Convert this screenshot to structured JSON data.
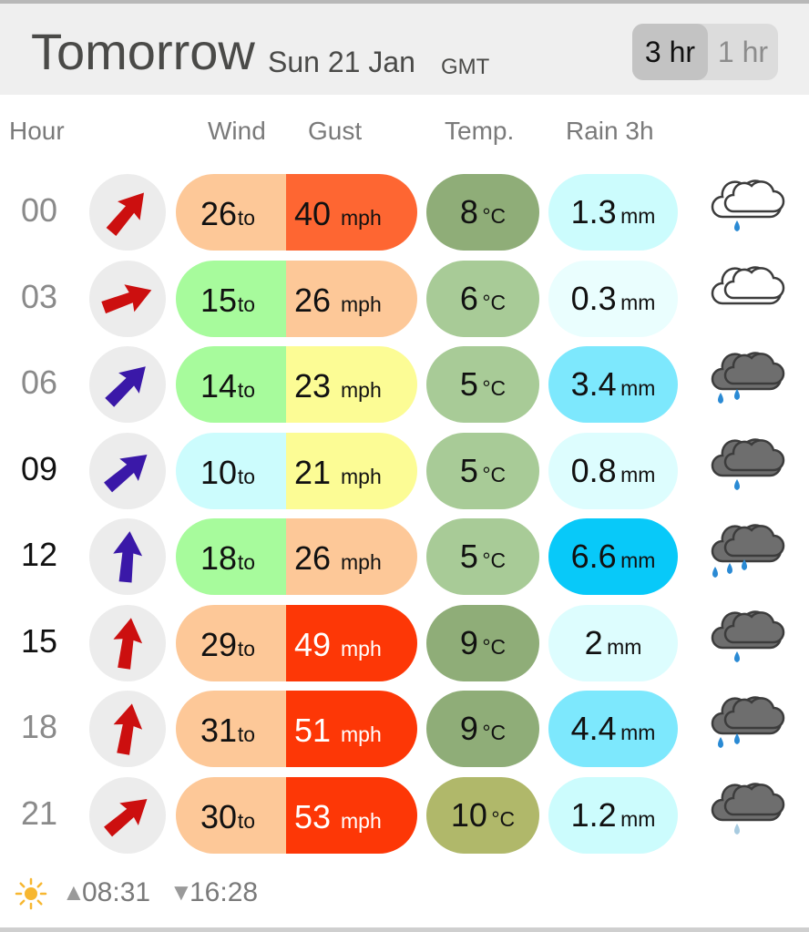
{
  "header": {
    "title": "Tomorrow",
    "date": "Sun 21 Jan",
    "timezone": "GMT",
    "toggle": [
      {
        "label": "3 hr",
        "active": true
      },
      {
        "label": "1 hr",
        "active": false
      }
    ]
  },
  "columns": {
    "hour": "Hour",
    "wind": "Wind",
    "gust": "Gust",
    "temp": "Temp.",
    "rain": "Rain 3h"
  },
  "units": {
    "wind_to": "to",
    "speed": "mph",
    "temp": "°C",
    "rain": "mm"
  },
  "rows": [
    {
      "hour": "00",
      "current": false,
      "dir_deg": 40,
      "dir_color": "#cc0f0f",
      "wind": "26",
      "gust": "40",
      "wind_bg": "#fdc898",
      "gust_bg": "#fe6632",
      "gust_text": "#111111",
      "temp": "8",
      "temp_bg": "#8fad78",
      "rain": "1.3",
      "rain_bg": "#ccfcfd",
      "icon": "cloud-light-rain-icon",
      "drops": 1,
      "dark_cloud": false
    },
    {
      "hour": "03",
      "current": false,
      "dir_deg": 70,
      "dir_color": "#cc0f0f",
      "wind": "15",
      "gust": "26",
      "wind_bg": "#a7fb9c",
      "gust_bg": "#fdc898",
      "gust_text": "#111111",
      "temp": "6",
      "temp_bg": "#a8cb97",
      "rain": "0.3",
      "rain_bg": "#eafefe",
      "icon": "partly-cloudy-night-icon",
      "drops": 0,
      "dark_cloud": false
    },
    {
      "hour": "06",
      "current": false,
      "dir_deg": 45,
      "dir_color": "#3a18a8",
      "wind": "14",
      "gust": "23",
      "wind_bg": "#a7fb9c",
      "gust_bg": "#fcfc95",
      "gust_text": "#111111",
      "temp": "5",
      "temp_bg": "#a8cb97",
      "rain": "3.4",
      "rain_bg": "#7de8fd",
      "icon": "cloud-rain-icon",
      "drops": 2,
      "dark_cloud": true
    },
    {
      "hour": "09",
      "current": true,
      "dir_deg": 50,
      "dir_color": "#3a18a8",
      "wind": "10",
      "gust": "21",
      "wind_bg": "#ccfcfd",
      "gust_bg": "#fcfc95",
      "gust_text": "#111111",
      "temp": "5",
      "temp_bg": "#a8cb97",
      "rain": "0.8",
      "rain_bg": "#ddfdfe",
      "icon": "cloud-light-rain-icon",
      "drops": 1,
      "dark_cloud": true
    },
    {
      "hour": "12",
      "current": true,
      "dir_deg": 5,
      "dir_color": "#3a18a8",
      "wind": "18",
      "gust": "26",
      "wind_bg": "#a7fb9c",
      "gust_bg": "#fdc898",
      "gust_text": "#111111",
      "temp": "5",
      "temp_bg": "#a8cb97",
      "rain": "6.6",
      "rain_bg": "#08c9f9",
      "icon": "cloud-heavy-rain-icon",
      "drops": 3,
      "dark_cloud": true
    },
    {
      "hour": "15",
      "current": true,
      "dir_deg": 8,
      "dir_color": "#cc0f0f",
      "wind": "29",
      "gust": "49",
      "wind_bg": "#fdc898",
      "gust_bg": "#fd3706",
      "gust_text": "#ffffff",
      "temp": "9",
      "temp_bg": "#8fad78",
      "rain": "2",
      "rain_bg": "#ddfdfe",
      "icon": "cloud-light-rain-icon",
      "drops": 1,
      "dark_cloud": true
    },
    {
      "hour": "18",
      "current": false,
      "dir_deg": 10,
      "dir_color": "#cc0f0f",
      "wind": "31",
      "gust": "51",
      "wind_bg": "#fdc898",
      "gust_bg": "#fd3706",
      "gust_text": "#ffffff",
      "temp": "9",
      "temp_bg": "#8fad78",
      "rain": "4.4",
      "rain_bg": "#7de8fd",
      "icon": "cloud-rain-icon",
      "drops": 2,
      "dark_cloud": true
    },
    {
      "hour": "21",
      "current": false,
      "dir_deg": 50,
      "dir_color": "#cc0f0f",
      "wind": "30",
      "gust": "53",
      "wind_bg": "#fdc898",
      "gust_bg": "#fd3706",
      "gust_text": "#ffffff",
      "temp": "10",
      "temp_bg": "#b0b86a",
      "rain": "1.2",
      "rain_bg": "#ccfcfd",
      "icon": "cloud-drizzle-icon",
      "drops": 1,
      "dark_cloud": true
    }
  ],
  "footer": {
    "sunrise": "08:31",
    "sunset": "16:28",
    "sun_icon": "sun-icon"
  }
}
